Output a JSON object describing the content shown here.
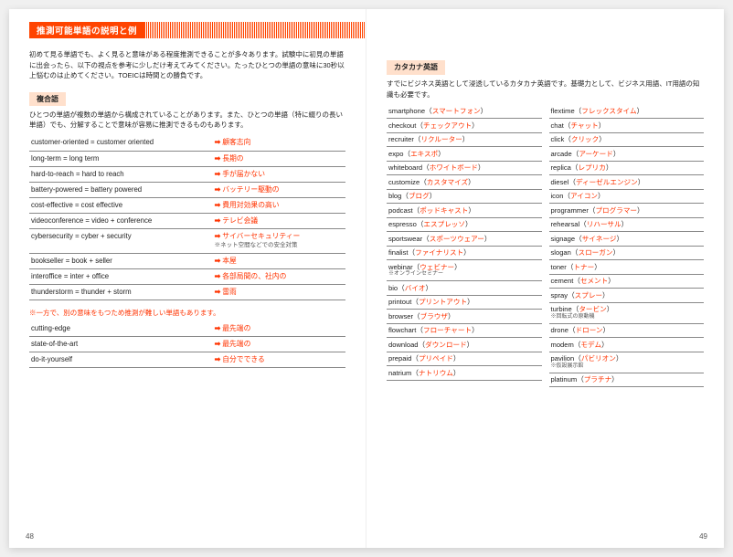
{
  "header": {
    "title": "推測可能単語の説明と例"
  },
  "left": {
    "intro": "初めて見る単語でも、よく見ると意味がある程度推測できることが多々あります。試験中に初見の単語に出会ったら、以下の視点を参考に少しだけ考えてみてください。たったひとつの単語の意味に30秒以上悩むのは止めてください。TOEICは時間との勝負です。",
    "section1_label": "複合語",
    "section1_text": "ひとつの単語が複数の単語から構成されていることがあります。また、ひとつの単語（特に綴りの長い単語）でも、分解することで意味が容易に推測できるものもあります。",
    "compound": [
      {
        "en": "customer-oriented = customer oriented",
        "ja": "顧客志向"
      },
      {
        "en": "long-term = long term",
        "ja": "長期の"
      },
      {
        "en": "hard-to-reach = hard to reach",
        "ja": "手が届かない"
      },
      {
        "en": "battery-powered = battery powered",
        "ja": "バッテリー駆動の"
      },
      {
        "en": "cost-effective = cost effective",
        "ja": "費用対効果の高い"
      },
      {
        "en": "videoconference = video + conference",
        "ja": "テレビ会議"
      },
      {
        "en": "cybersecurity = cyber + security",
        "ja": "サイバーセキュリティー",
        "note": "※ネット空間などでの安全対策"
      },
      {
        "en": "bookseller = book + seller",
        "ja": "本屋"
      },
      {
        "en": "interoffice = inter + office",
        "ja": "各部局間の、社内の"
      },
      {
        "en": "thunderstorm = thunder + storm",
        "ja": "雷雨"
      }
    ],
    "note_red": "※一方で、別の意味をもつため推測が難しい単語もあります。",
    "exceptions": [
      {
        "en": "cutting-edge",
        "ja": "最先端の"
      },
      {
        "en": "state-of-the-art",
        "ja": "最先端の"
      },
      {
        "en": "do-it-yourself",
        "ja": "自分でできる"
      }
    ],
    "pagenum": "48"
  },
  "right": {
    "section_label": "カタカナ英語",
    "section_text": "すでにビジネス英語として浸透しているカタカナ英語です。基礎力として、ビジネス用語、IT用語の知識も必要です。",
    "col1": [
      {
        "en": "smartphone",
        "jp": "スマートフォン"
      },
      {
        "en": "checkout",
        "jp": "チェックアウト"
      },
      {
        "en": "recruiter",
        "jp": "リクルーター"
      },
      {
        "en": "expo",
        "jp": "エキスポ"
      },
      {
        "en": "whiteboard",
        "jp": "ホワイトボード"
      },
      {
        "en": "customize",
        "jp": "カスタマイズ"
      },
      {
        "en": "blog",
        "jp": "ブログ"
      },
      {
        "en": "podcast",
        "jp": "ポッドキャスト"
      },
      {
        "en": "espresso",
        "jp": "エスプレッソ"
      },
      {
        "en": "sportswear",
        "jp": "スポーツウェアー"
      },
      {
        "en": "finalist",
        "jp": "ファイナリスト"
      },
      {
        "en": "webinar",
        "jp": "ウェビナー",
        "note": "※オンラインセミナー"
      },
      {
        "en": "bio",
        "jp": "バイオ"
      },
      {
        "en": "printout",
        "jp": "プリントアウト"
      },
      {
        "en": "browser",
        "jp": "ブラウザ"
      },
      {
        "en": "flowchart",
        "jp": "フローチャート"
      },
      {
        "en": "download",
        "jp": "ダウンロード"
      },
      {
        "en": "prepaid",
        "jp": "プリペイド"
      },
      {
        "en": "natrium",
        "jp": "ナトリウム"
      }
    ],
    "col2": [
      {
        "en": "flextime",
        "jp": "フレックスタイム"
      },
      {
        "en": "chat",
        "jp": "チャット"
      },
      {
        "en": "click",
        "jp": "クリック"
      },
      {
        "en": "arcade",
        "jp": "アーケード"
      },
      {
        "en": "replica",
        "jp": "レプリカ"
      },
      {
        "en": "diesel",
        "jp": "ディーゼルエンジン"
      },
      {
        "en": "icon",
        "jp": "アイコン"
      },
      {
        "en": "programmer",
        "jp": "プログラマー"
      },
      {
        "en": "rehearsal",
        "jp": "リハーサル"
      },
      {
        "en": "signage",
        "jp": "サイネージ"
      },
      {
        "en": "slogan",
        "jp": "スローガン"
      },
      {
        "en": "toner",
        "jp": "トナー"
      },
      {
        "en": "cement",
        "jp": "セメント"
      },
      {
        "en": "spray",
        "jp": "スプレー"
      },
      {
        "en": "turbine",
        "jp": "タービン",
        "note": "※回転式の原動機"
      },
      {
        "en": "drone",
        "jp": "ドローン"
      },
      {
        "en": "modem",
        "jp": "モデム"
      },
      {
        "en": "pavilion",
        "jp": "パビリオン",
        "note": "※仮設展示館"
      },
      {
        "en": "platinum",
        "jp": "プラチナ"
      }
    ],
    "pagenum": "49"
  }
}
